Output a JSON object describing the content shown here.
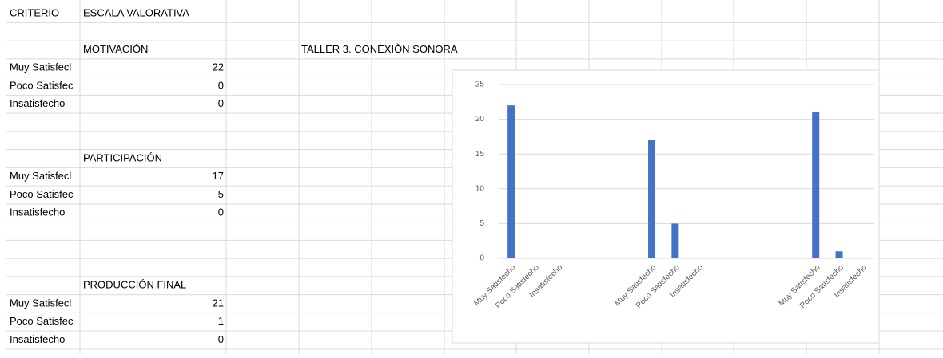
{
  "sheet": {
    "headers": [
      "CRITERIO",
      "ESCALA VALORATIVA"
    ],
    "title": "TALLER 3. CONEXIÒN SONORA",
    "sections": [
      {
        "name": "MOTIVACIÓN",
        "rows": [
          [
            "Muy Satisfecl",
            "22"
          ],
          [
            "Poco Satisfec",
            "0"
          ],
          [
            "Insatisfecho",
            "0"
          ]
        ]
      },
      {
        "name": "PARTICIPACIÓN",
        "rows": [
          [
            "Muy Satisfecl",
            "17"
          ],
          [
            "Poco Satisfec",
            "5"
          ],
          [
            "Insatisfecho",
            "0"
          ]
        ]
      },
      {
        "name": "PRODUCCIÓN FINAL",
        "rows": [
          [
            "Muy Satisfecl",
            "21"
          ],
          [
            "Poco Satisfec",
            "1"
          ],
          [
            "Insatisfecho",
            "0"
          ]
        ]
      }
    ]
  },
  "chart_data": {
    "type": "bar",
    "categories": [
      "Muy Satisfecho",
      "Poco Satisfecho",
      "Insatisfecho",
      null,
      null,
      null,
      "Muy Satisfecho",
      "Poco Satisfecho",
      "Insatisfecho",
      null,
      null,
      null,
      null,
      "Muy Satisfecho",
      "Poco Satisfecho",
      "Insatisfecho"
    ],
    "values": [
      22,
      0,
      0,
      null,
      null,
      null,
      17,
      5,
      0,
      null,
      null,
      null,
      null,
      21,
      1,
      0
    ],
    "color": "#4472c4",
    "ylim": [
      0,
      25
    ],
    "yticks": [
      0,
      5,
      10,
      15,
      20,
      25
    ],
    "grid": true
  }
}
